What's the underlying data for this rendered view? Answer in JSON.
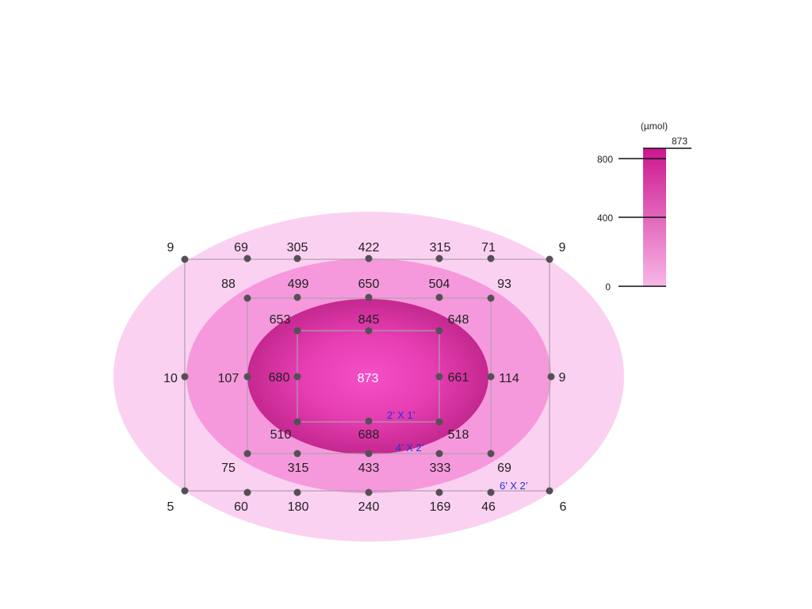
{
  "colors": {
    "outer": "#fbd1f1",
    "middle": "#f599dc",
    "inner_edge": "#d2329f",
    "inner_center": "#f550c8",
    "scale_top": "#cc168e",
    "scale_bottom": "#f8b7e7",
    "point": "#565056",
    "grid_label": "#2233dd"
  },
  "scale": {
    "unit": "(µmol)",
    "max_label": "873",
    "ticks": [
      "800",
      "400",
      "0"
    ]
  },
  "grid_labels": [
    "2’ X 1’",
    "4’ X 2’",
    "6’ X 2’"
  ],
  "center_value": "873",
  "values": {
    "outer_top": [
      "9",
      "69",
      "305",
      "422",
      "315",
      "71",
      "9"
    ],
    "outer_bottom": [
      "5",
      "60",
      "180",
      "240",
      "169",
      "46",
      "6"
    ],
    "outer_left": "10",
    "outer_right": "9",
    "middle_top": [
      "88",
      "499",
      "650",
      "504",
      "93"
    ],
    "middle_bottom": [
      "75",
      "315",
      "433",
      "333",
      "69"
    ],
    "middle_left": "107",
    "middle_right": "114",
    "inner_top": [
      "653",
      "845",
      "648"
    ],
    "inner_bottom": [
      "510",
      "688",
      "518"
    ],
    "inner_left": "680",
    "inner_right": "661"
  }
}
